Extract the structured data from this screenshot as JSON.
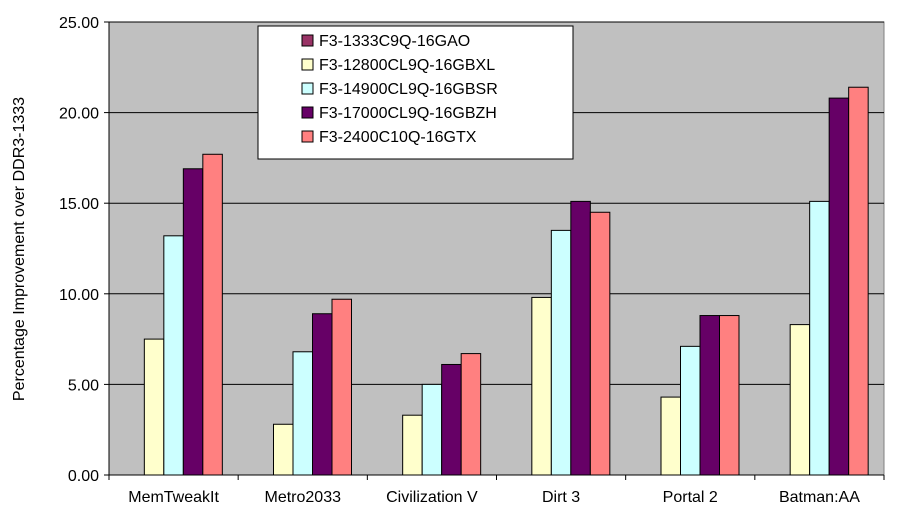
{
  "chart_data": {
    "type": "bar",
    "title": "",
    "xlabel": "",
    "ylabel": "Percentage Improvement over DDR3-1333",
    "ylim": [
      0,
      25
    ],
    "yticks": [
      "0.00",
      "5.00",
      "10.00",
      "15.00",
      "20.00",
      "25.00"
    ],
    "grid": true,
    "legend_position": "top-left-inside",
    "plot_background": "#c0c0c0",
    "categories": [
      "MemTweakIt",
      "Metro2033",
      "Civilization V",
      "Dirt 3",
      "Portal 2",
      "Batman:AA"
    ],
    "series": [
      {
        "name": "F3-1333C9Q-16GAO",
        "color": "#993366",
        "values": [
          0,
          0,
          0,
          0,
          0,
          0
        ]
      },
      {
        "name": "F3-12800CL9Q-16GBXL",
        "color": "#ffffcc",
        "values": [
          7.5,
          2.8,
          3.3,
          9.8,
          4.3,
          8.3
        ]
      },
      {
        "name": "F3-14900CL9Q-16GBSR",
        "color": "#ccffff",
        "values": [
          13.2,
          6.8,
          5.0,
          13.5,
          7.1,
          15.1
        ]
      },
      {
        "name": "F3-17000CL9Q-16GBZH",
        "color": "#660066",
        "values": [
          16.9,
          8.9,
          6.1,
          15.1,
          8.8,
          20.8
        ]
      },
      {
        "name": "F3-2400C10Q-16GTX",
        "color": "#ff8080",
        "values": [
          17.7,
          9.7,
          6.7,
          14.5,
          8.8,
          21.4
        ]
      }
    ]
  }
}
